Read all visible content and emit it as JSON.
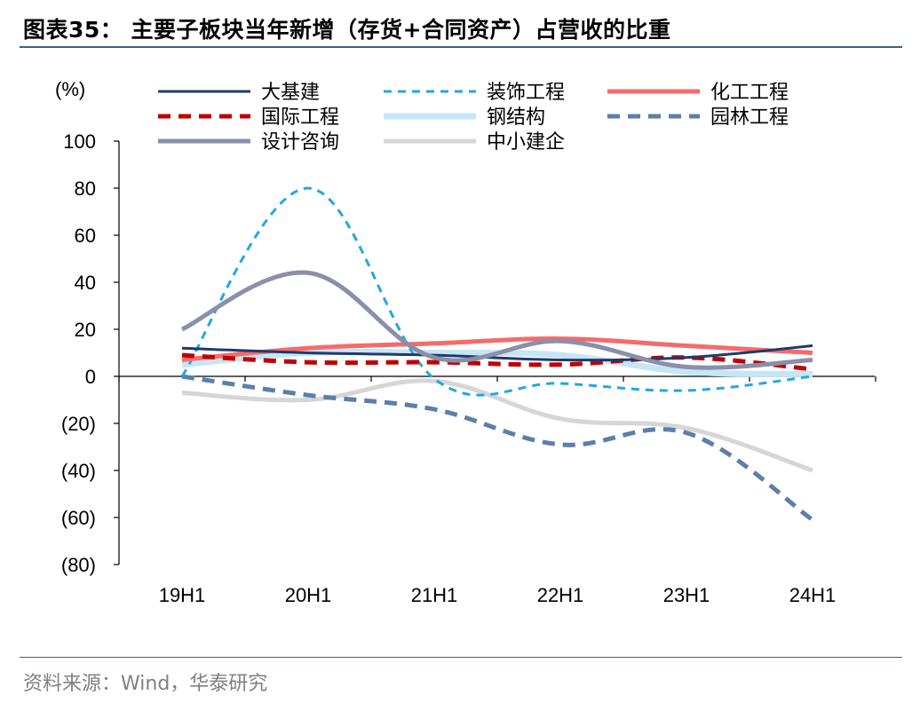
{
  "header": {
    "title": "图表35： 主要子板块当年新增（存货+合同资产）占营收的比重"
  },
  "footer": {
    "source": "资料来源：Wind，华泰研究"
  },
  "chart_data": {
    "type": "line",
    "unit_label": "(%)",
    "x": [
      "19H1",
      "20H1",
      "21H1",
      "22H1",
      "23H1",
      "24H1"
    ],
    "ylim": [
      -80,
      100
    ],
    "yticks": [
      100,
      80,
      60,
      40,
      20,
      0,
      -20,
      -40,
      -60,
      -80
    ],
    "ytick_labels": [
      "100",
      "80",
      "60",
      "40",
      "20",
      "0",
      "(20)",
      "(40)",
      "(60)",
      "(80)"
    ],
    "grid": false,
    "legend_position": "top",
    "series": [
      {
        "name": "大基建",
        "color": "#1f3a6b",
        "dash": "solid",
        "width": 3,
        "values": [
          12,
          10,
          9,
          7,
          8,
          13
        ]
      },
      {
        "name": "装饰工程",
        "color": "#21a8e0",
        "dash": "dashed",
        "width": 3,
        "values": [
          0,
          80,
          -1,
          -3,
          -6,
          0
        ]
      },
      {
        "name": "化工工程",
        "color": "#f56b6b",
        "dash": "solid",
        "width": 5,
        "values": [
          7,
          12,
          14,
          16,
          13,
          10
        ]
      },
      {
        "name": "国际工程",
        "color": "#c00000",
        "dash": "dashed",
        "width": 5,
        "values": [
          9,
          6,
          6,
          5,
          8,
          3
        ]
      },
      {
        "name": "钢结构",
        "color": "#c6e6f6",
        "dash": "solid",
        "width": 7,
        "values": [
          5,
          10,
          10,
          9,
          2,
          1
        ]
      },
      {
        "name": "园林工程",
        "color": "#5b7faa",
        "dash": "dashed",
        "width": 5,
        "values": [
          0,
          -8,
          -14,
          -29,
          -24,
          -61
        ]
      },
      {
        "name": "设计咨询",
        "color": "#8a8faa",
        "dash": "solid",
        "width": 5,
        "values": [
          20,
          44,
          8,
          15,
          4,
          7
        ]
      },
      {
        "name": "中小建企",
        "color": "#d6d6d6",
        "dash": "solid",
        "width": 5,
        "values": [
          -7,
          -10,
          -2,
          -18,
          -22,
          -40
        ]
      }
    ]
  }
}
